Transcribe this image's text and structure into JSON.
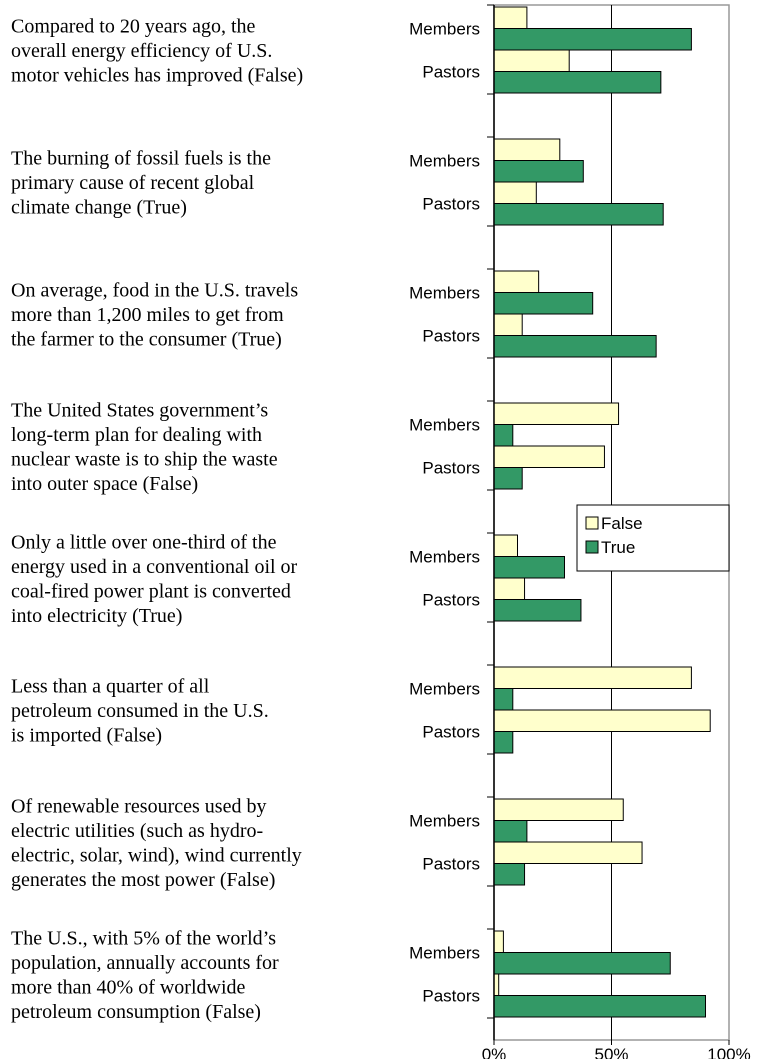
{
  "chart_data": {
    "type": "bar",
    "orientation": "horizontal",
    "categories": [
      [
        "Compared to 20 years ago, the",
        "overall energy efficiency of U.S.",
        "motor vehicles has improved (False)"
      ],
      [
        "The burning of fossil fuels is the",
        "primary cause of recent global",
        "climate change (True)"
      ],
      [
        "On average, food in the U.S. travels",
        "more than 1,200 miles to get from",
        "the farmer to the consumer (True)"
      ],
      [
        "The United States government’s",
        "long-term plan for dealing with",
        "nuclear waste is to ship the waste",
        "into outer space (False)"
      ],
      [
        "Only a little over one-third of the",
        "energy used in a conventional oil or",
        "coal-fired power plant is converted",
        "into electricity (True)"
      ],
      [
        "Less than a quarter of all",
        "petroleum consumed in the U.S.",
        "is imported (False)"
      ],
      [
        "Of renewable resources used by",
        "electric utilities (such as hydro-",
        "electric, solar, wind), wind currently",
        "generates the most power (False)"
      ],
      [
        "The U.S., with 5% of the world’s",
        "population, annually accounts for",
        "more than 40% of worldwide",
        "petroleum consumption (False)"
      ]
    ],
    "groups": [
      "Members",
      "Pastors"
    ],
    "series": [
      {
        "name": "False",
        "color": "#ffffcc",
        "values": [
          [
            14,
            32
          ],
          [
            28,
            18
          ],
          [
            19,
            12
          ],
          [
            53,
            47
          ],
          [
            10,
            13
          ],
          [
            84,
            92
          ],
          [
            55,
            63
          ],
          [
            4,
            2
          ]
        ]
      },
      {
        "name": "True",
        "color": "#339966",
        "values": [
          [
            84,
            71
          ],
          [
            38,
            72
          ],
          [
            42,
            69
          ],
          [
            8,
            12
          ],
          [
            30,
            37
          ],
          [
            8,
            8
          ],
          [
            14,
            13
          ],
          [
            75,
            90
          ]
        ]
      }
    ],
    "xlim": [
      0,
      100
    ],
    "xticks": [
      {
        "value": 0,
        "label": "0%"
      },
      {
        "value": 50,
        "label": "50%"
      },
      {
        "value": 100,
        "label": "100%"
      }
    ],
    "grid": true,
    "legend": "right"
  }
}
